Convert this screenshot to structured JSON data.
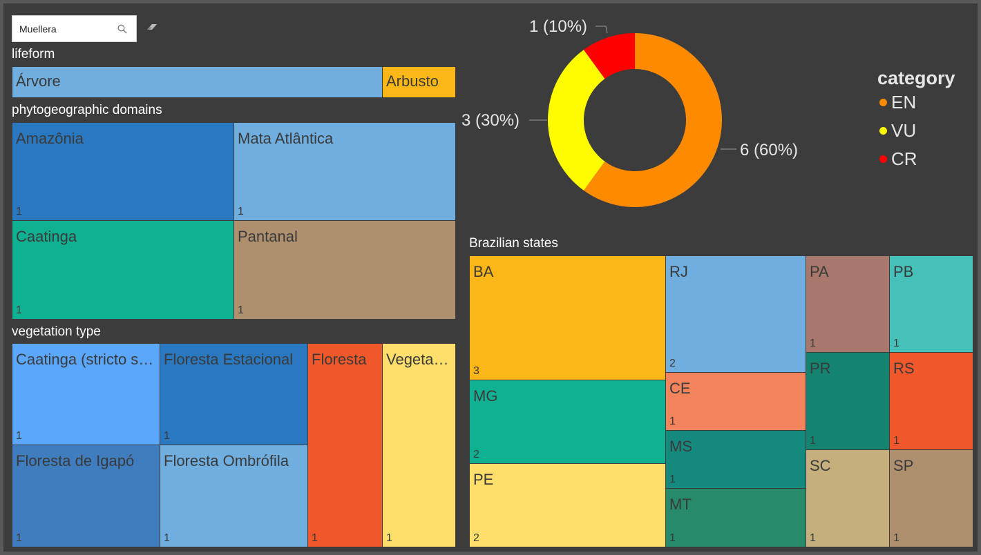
{
  "search": {
    "value": "Muellera"
  },
  "lifeform": {
    "title": "lifeform",
    "tiles": [
      {
        "label": "Árvore",
        "color": "#70aedf"
      },
      {
        "label": "Arbusto",
        "color": "#fbb718"
      }
    ]
  },
  "domains": {
    "title": "phytogeographic domains",
    "tiles": [
      {
        "label": "Amazônia",
        "count": "1",
        "color": "#2a78bf"
      },
      {
        "label": "Mata Atlântica",
        "count": "1",
        "color": "#70aedf"
      },
      {
        "label": "Caatinga",
        "count": "1",
        "color": "#10b093"
      },
      {
        "label": "Pantanal",
        "count": "1",
        "color": "#ae906f"
      }
    ]
  },
  "vegetation": {
    "title": "vegetation type",
    "tiles": [
      {
        "label": "Caatinga (stricto sensu)",
        "count": "1",
        "color": "#5aa7fb"
      },
      {
        "label": "Floresta Estacional",
        "count": "1",
        "color": "#2a78bf"
      },
      {
        "label": "Floresta",
        "count": "1",
        "color": "#f0572a"
      },
      {
        "label": "Vegetação",
        "count": "1",
        "color": "#fedf6b"
      },
      {
        "label": "Floresta de Igapó",
        "count": "1",
        "color": "#3f7dbe"
      },
      {
        "label": "Floresta Ombrófila",
        "count": "1",
        "color": "#70aedf"
      }
    ]
  },
  "states": {
    "title": "Brazilian states",
    "tiles": [
      {
        "label": "BA",
        "count": "3",
        "color": "#fbb718"
      },
      {
        "label": "MG",
        "count": "2",
        "color": "#10b093"
      },
      {
        "label": "PE",
        "count": "2",
        "color": "#fedf6b"
      },
      {
        "label": "RJ",
        "count": "2",
        "color": "#70aedf"
      },
      {
        "label": "CE",
        "count": "1",
        "color": "#f2845d"
      },
      {
        "label": "MS",
        "count": "1",
        "color": "#16897f"
      },
      {
        "label": "MT",
        "count": "1",
        "color": "#278a6b"
      },
      {
        "label": "PA",
        "count": "1",
        "color": "#a7786b"
      },
      {
        "label": "PB",
        "count": "1",
        "color": "#46c1ba"
      },
      {
        "label": "PR",
        "count": "1",
        "color": "#148370"
      },
      {
        "label": "RS",
        "count": "1",
        "color": "#f0572a"
      },
      {
        "label": "SC",
        "count": "1",
        "color": "#c5af7c"
      },
      {
        "label": "SP",
        "count": "1",
        "color": "#ae906f"
      }
    ]
  },
  "chart_data": {
    "type": "pie",
    "variant": "donut",
    "categories": [
      "EN",
      "VU",
      "CR"
    ],
    "values": [
      6,
      3,
      1
    ],
    "data_labels": [
      "6 (60%)",
      "3 (30%)",
      "1 (10%)"
    ],
    "colors": [
      "#fe8a00",
      "#fffc00",
      "#fe0000"
    ],
    "legend": {
      "title": "category",
      "position": "right"
    }
  }
}
